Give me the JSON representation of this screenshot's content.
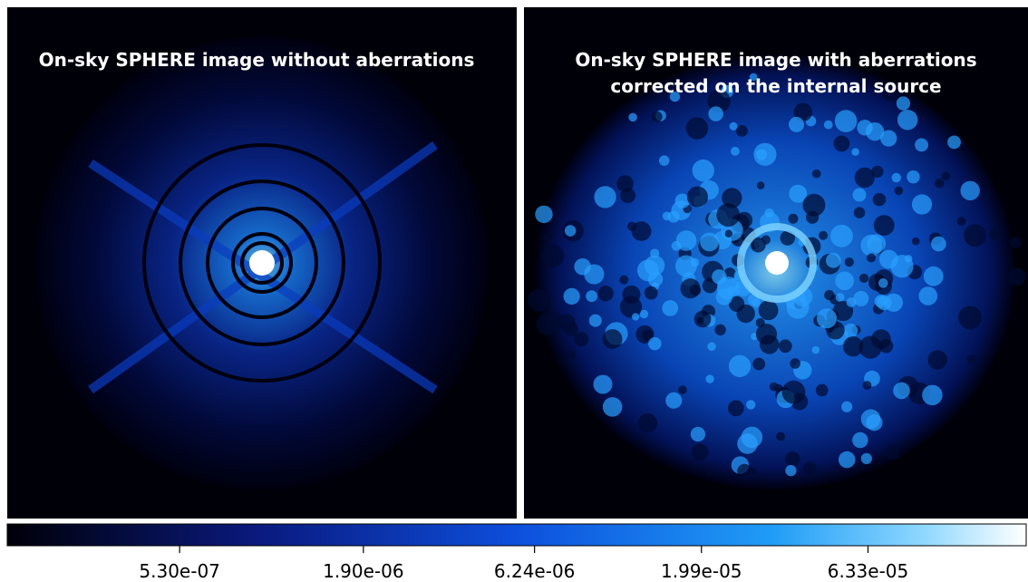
{
  "panels": [
    {
      "title_lines": [
        "On-sky SPHERE image without aberrations"
      ]
    },
    {
      "title_lines": [
        "On-sky SPHERE image with aberrations",
        "corrected on the internal source"
      ]
    }
  ],
  "colorbar": {
    "scale": "log",
    "lim": [
      1.6e-07,
      0.00019
    ],
    "ticks": [
      {
        "value": 5.3e-07,
        "label": "5.30e-07"
      },
      {
        "value": 1.9e-06,
        "label": "1.90e-06"
      },
      {
        "value": 6.24e-06,
        "label": "6.24e-06"
      },
      {
        "value": 1.99e-05,
        "label": "1.99e-05"
      },
      {
        "value": 6.33e-05,
        "label": "6.33e-05"
      }
    ]
  }
}
